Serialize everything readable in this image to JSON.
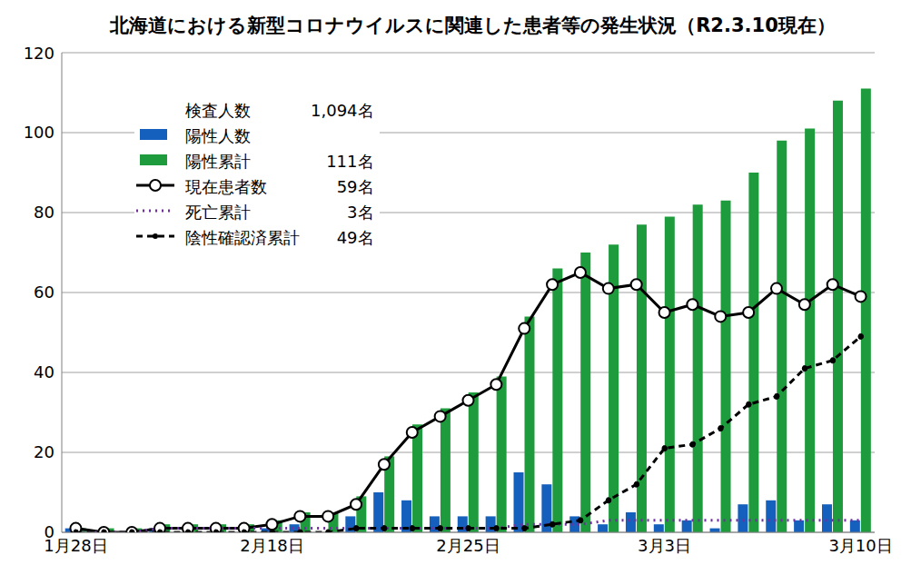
{
  "chart_data": {
    "type": "bar",
    "title": "北海道における新型コロナウイルスに関連した患者等の発生状況（R2.3.10現在）",
    "categories": [
      "1月28日",
      null,
      null,
      null,
      null,
      null,
      null,
      "2月18日",
      null,
      null,
      null,
      null,
      null,
      null,
      "2月25日",
      null,
      null,
      null,
      null,
      null,
      null,
      "3月3日",
      null,
      null,
      null,
      null,
      null,
      null,
      "3月10日"
    ],
    "series": [
      {
        "name": "陽性人数",
        "type": "bar",
        "color": "#1560bd",
        "values": [
          1,
          0,
          0,
          1,
          0,
          0,
          0,
          1,
          2,
          0,
          4,
          10,
          8,
          4,
          4,
          4,
          15,
          12,
          4,
          2,
          5,
          2,
          3,
          1,
          7,
          8,
          3,
          7,
          3
        ]
      },
      {
        "name": "陽性累計",
        "type": "bar",
        "color": "#1e9b3c",
        "legend_text": "111名",
        "values": [
          1,
          1,
          1,
          2,
          2,
          2,
          2,
          3,
          5,
          5,
          9,
          19,
          27,
          31,
          35,
          39,
          54,
          66,
          70,
          72,
          77,
          79,
          82,
          83,
          90,
          98,
          101,
          108,
          111
        ]
      },
      {
        "name": "現在患者数",
        "type": "line",
        "color": "#000000",
        "marker": "circle",
        "line_style": "solid",
        "legend_text": "59名",
        "values": [
          1,
          0,
          0,
          1,
          1,
          1,
          1,
          2,
          4,
          4,
          7,
          17,
          25,
          29,
          33,
          37,
          51,
          62,
          65,
          61,
          62,
          55,
          57,
          54,
          55,
          61,
          57,
          62,
          59
        ]
      },
      {
        "name": "死亡累計",
        "type": "line",
        "color": "#7030a0",
        "marker": "none",
        "line_style": "dotted",
        "legend_text": "3名",
        "values": [
          0,
          0,
          0,
          1,
          1,
          1,
          1,
          1,
          1,
          1,
          1,
          1,
          1,
          1,
          1,
          1,
          2,
          2,
          2,
          3,
          3,
          3,
          3,
          3,
          3,
          3,
          3,
          3,
          3
        ]
      },
      {
        "name": "陰性確認済累計",
        "type": "line",
        "color": "#000000",
        "marker": "dot",
        "line_style": "dashed",
        "legend_text": "49名",
        "values": [
          0,
          0,
          0,
          0,
          0,
          0,
          0,
          0,
          0,
          0,
          1,
          1,
          1,
          1,
          1,
          1,
          1,
          2,
          3,
          8,
          12,
          21,
          22,
          26,
          32,
          34,
          41,
          43,
          49
        ]
      }
    ],
    "annotation": {
      "label": "検査人数",
      "text": "1,094名"
    },
    "ylim": [
      0,
      120
    ],
    "yticks": [
      0,
      20,
      40,
      60,
      80,
      100,
      120
    ],
    "grid": true,
    "legend": "upper left"
  }
}
